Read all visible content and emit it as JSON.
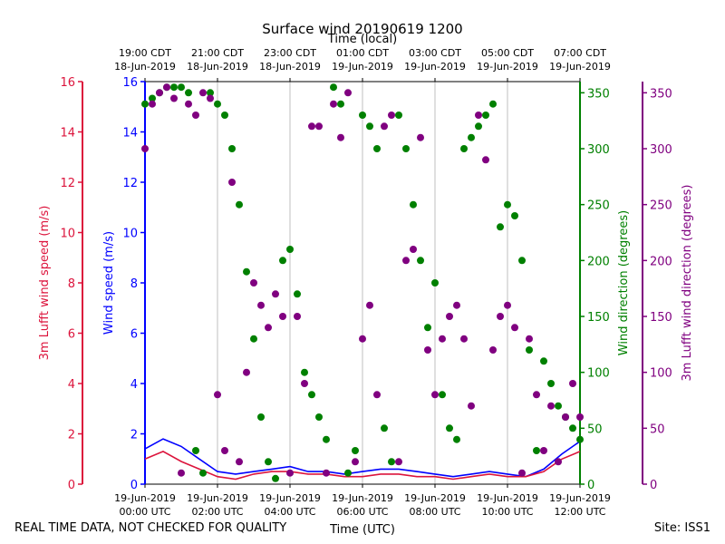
{
  "chart_data": {
    "type": "scatter",
    "title": "Surface wind 20190619 1200",
    "top_axis_label": "Time (local)",
    "x_label": "Time (UTC)",
    "x_range": [
      "2019-06-19T00:00Z",
      "2019-06-19T12:00Z"
    ],
    "x_ticks_utc": [
      [
        "19-Jun-2019",
        "00:00 UTC"
      ],
      [
        "19-Jun-2019",
        "02:00 UTC"
      ],
      [
        "19-Jun-2019",
        "04:00 UTC"
      ],
      [
        "19-Jun-2019",
        "06:00 UTC"
      ],
      [
        "19-Jun-2019",
        "08:00 UTC"
      ],
      [
        "19-Jun-2019",
        "10:00 UTC"
      ],
      [
        "19-Jun-2019",
        "12:00 UTC"
      ]
    ],
    "x_ticks_local": [
      [
        "19:00 CDT",
        "18-Jun-2019"
      ],
      [
        "21:00 CDT",
        "18-Jun-2019"
      ],
      [
        "23:00 CDT",
        "18-Jun-2019"
      ],
      [
        "01:00 CDT",
        "19-Jun-2019"
      ],
      [
        "03:00 CDT",
        "19-Jun-2019"
      ],
      [
        "05:00 CDT",
        "19-Jun-2019"
      ],
      [
        "07:00 CDT",
        "19-Jun-2019"
      ]
    ],
    "axes": {
      "lufft_speed": {
        "label": "3m Lufft wind speed (m/s)",
        "color": "#dc143c",
        "range": [
          0,
          16
        ],
        "ticks": [
          "0",
          "2",
          "4",
          "6",
          "8",
          "10",
          "12",
          "14",
          "16"
        ]
      },
      "wind_speed": {
        "label": "Wind speed (m/s)",
        "color": "#0000ff",
        "range": [
          0,
          16
        ],
        "ticks": [
          "0",
          "2",
          "4",
          "6",
          "8",
          "10",
          "12",
          "14",
          "16"
        ]
      },
      "wind_dir": {
        "label": "Wind direction (degrees)",
        "color": "#008000",
        "range": [
          0,
          360
        ],
        "ticks": [
          "0",
          "50",
          "100",
          "150",
          "200",
          "250",
          "300",
          "350"
        ]
      },
      "lufft_dir": {
        "label": "3m Lufft wind direction (degrees)",
        "color": "#800080",
        "range": [
          0,
          360
        ],
        "ticks": [
          "0",
          "50",
          "100",
          "150",
          "200",
          "250",
          "300",
          "350"
        ]
      }
    },
    "series": [
      {
        "name": "Wind speed",
        "axis": "wind_speed",
        "style": "line",
        "color": "#0000ff",
        "hours": [
          0,
          0.5,
          1,
          1.5,
          2,
          2.5,
          3,
          3.5,
          4,
          4.5,
          5,
          5.5,
          6,
          6.5,
          7,
          7.5,
          8,
          8.5,
          9,
          9.5,
          10,
          10.5,
          11,
          11.5,
          12
        ],
        "values": [
          1.4,
          1.8,
          1.5,
          1.0,
          0.5,
          0.4,
          0.5,
          0.6,
          0.7,
          0.5,
          0.5,
          0.4,
          0.5,
          0.6,
          0.6,
          0.5,
          0.4,
          0.3,
          0.4,
          0.5,
          0.4,
          0.3,
          0.6,
          1.2,
          1.7
        ]
      },
      {
        "name": "3m Lufft wind speed",
        "axis": "lufft_speed",
        "style": "line",
        "color": "#dc143c",
        "hours": [
          0,
          0.5,
          1,
          1.5,
          2,
          2.5,
          3,
          3.5,
          4,
          4.5,
          5,
          5.5,
          6,
          6.5,
          7,
          7.5,
          8,
          8.5,
          9,
          9.5,
          10,
          10.5,
          11,
          11.5,
          12
        ],
        "values": [
          1.0,
          1.3,
          0.9,
          0.6,
          0.3,
          0.2,
          0.4,
          0.5,
          0.5,
          0.4,
          0.4,
          0.3,
          0.3,
          0.4,
          0.4,
          0.3,
          0.3,
          0.2,
          0.3,
          0.4,
          0.3,
          0.3,
          0.5,
          1.0,
          1.3
        ]
      },
      {
        "name": "Wind direction",
        "axis": "wind_dir",
        "style": "points",
        "color": "#008000",
        "hours": [
          0.0,
          0.2,
          0.4,
          0.6,
          0.8,
          1.0,
          1.2,
          1.4,
          1.6,
          1.8,
          2.0,
          2.2,
          2.4,
          2.6,
          2.8,
          3.0,
          3.2,
          3.4,
          3.6,
          3.8,
          4.0,
          4.2,
          4.4,
          4.6,
          4.8,
          5.0,
          5.2,
          5.4,
          5.6,
          5.8,
          6.0,
          6.2,
          6.4,
          6.6,
          6.8,
          7.0,
          7.2,
          7.4,
          7.6,
          7.8,
          8.0,
          8.2,
          8.4,
          8.6,
          8.8,
          9.0,
          9.2,
          9.4,
          9.6,
          9.8,
          10.0,
          10.2,
          10.4,
          10.6,
          10.8,
          11.0,
          11.2,
          11.4,
          11.6,
          11.8,
          12.0
        ],
        "values": [
          340,
          345,
          350,
          355,
          355,
          355,
          350,
          30,
          10,
          350,
          340,
          330,
          300,
          250,
          190,
          130,
          60,
          20,
          5,
          200,
          210,
          170,
          100,
          80,
          60,
          40,
          355,
          340,
          10,
          30,
          330,
          320,
          300,
          50,
          20,
          330,
          300,
          250,
          200,
          140,
          180,
          80,
          50,
          40,
          300,
          310,
          320,
          330,
          340,
          230,
          250,
          240,
          200,
          120,
          30,
          110,
          90,
          70,
          60,
          50,
          40
        ]
      },
      {
        "name": "3m Lufft wind direction",
        "axis": "lufft_dir",
        "style": "points",
        "color": "#800080",
        "hours": [
          0.0,
          0.2,
          0.4,
          0.6,
          0.8,
          1.0,
          1.2,
          1.4,
          1.6,
          1.8,
          2.0,
          2.2,
          2.4,
          2.6,
          2.8,
          3.0,
          3.2,
          3.4,
          3.6,
          3.8,
          4.0,
          4.2,
          4.4,
          4.6,
          4.8,
          5.0,
          5.2,
          5.4,
          5.6,
          5.8,
          6.0,
          6.2,
          6.4,
          6.6,
          6.8,
          7.0,
          7.2,
          7.4,
          7.6,
          7.8,
          8.0,
          8.2,
          8.4,
          8.6,
          8.8,
          9.0,
          9.2,
          9.4,
          9.6,
          9.8,
          10.0,
          10.2,
          10.4,
          10.6,
          10.8,
          11.0,
          11.2,
          11.4,
          11.6,
          11.8,
          12.0
        ],
        "values": [
          300,
          340,
          350,
          355,
          345,
          10,
          340,
          330,
          350,
          345,
          80,
          30,
          270,
          20,
          100,
          180,
          160,
          140,
          170,
          150,
          10,
          150,
          90,
          320,
          320,
          10,
          340,
          310,
          350,
          20,
          130,
          160,
          80,
          320,
          330,
          20,
          200,
          210,
          310,
          120,
          80,
          130,
          150,
          160,
          130,
          70,
          330,
          290,
          120,
          150,
          160,
          140,
          10,
          130,
          80,
          30,
          70,
          20,
          60,
          90,
          60
        ]
      }
    ]
  },
  "footer": {
    "disclaimer": "REAL TIME DATA, NOT CHECKED FOR QUALITY",
    "site": "Site: ISS1"
  }
}
